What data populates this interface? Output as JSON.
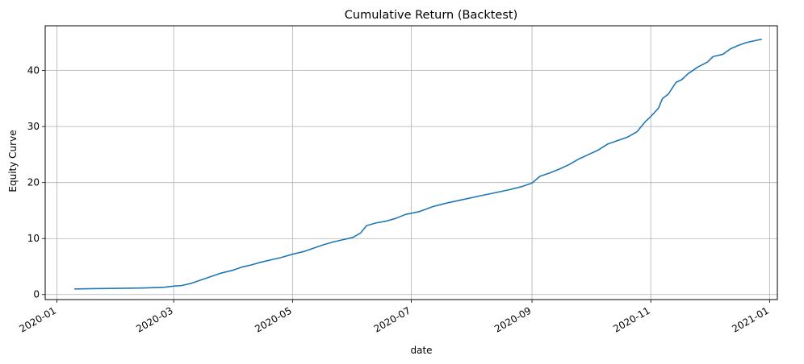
{
  "chart_data": {
    "type": "line",
    "title": "Cumulative Return (Backtest)",
    "xlabel": "date",
    "ylabel": "Equity Curve",
    "x_type": "date",
    "xlim": [
      "2019-12-26",
      "2021-01-05"
    ],
    "ylim": [
      -0.9,
      48
    ],
    "grid": true,
    "x_ticks": [
      "2020-01-01",
      "2020-03-01",
      "2020-05-01",
      "2020-07-01",
      "2020-09-01",
      "2020-11-01",
      "2021-01-01"
    ],
    "x_tick_labels": [
      "2020-01",
      "2020-03",
      "2020-05",
      "2020-07",
      "2020-09",
      "2020-11",
      "2021-01"
    ],
    "y_ticks": [
      0,
      10,
      20,
      30,
      40
    ],
    "series_color": "#1f77b4",
    "series": [
      {
        "points": [
          [
            "2020-01-10",
            1.0
          ],
          [
            "2020-01-20",
            1.05
          ],
          [
            "2020-02-01",
            1.1
          ],
          [
            "2020-02-15",
            1.18
          ],
          [
            "2020-02-25",
            1.3
          ],
          [
            "2020-03-01",
            1.5
          ],
          [
            "2020-03-05",
            1.6
          ],
          [
            "2020-03-10",
            2.0
          ],
          [
            "2020-03-15",
            2.6
          ],
          [
            "2020-03-20",
            3.2
          ],
          [
            "2020-03-25",
            3.8
          ],
          [
            "2020-03-31",
            4.3
          ],
          [
            "2020-04-05",
            4.9
          ],
          [
            "2020-04-10",
            5.3
          ],
          [
            "2020-04-15",
            5.8
          ],
          [
            "2020-04-20",
            6.2
          ],
          [
            "2020-04-25",
            6.6
          ],
          [
            "2020-05-01",
            7.2
          ],
          [
            "2020-05-07",
            7.7
          ],
          [
            "2020-05-12",
            8.3
          ],
          [
            "2020-05-17",
            8.9
          ],
          [
            "2020-05-22",
            9.4
          ],
          [
            "2020-05-27",
            9.8
          ],
          [
            "2020-06-01",
            10.2
          ],
          [
            "2020-06-05",
            11.0
          ],
          [
            "2020-06-08",
            12.3
          ],
          [
            "2020-06-13",
            12.8
          ],
          [
            "2020-06-18",
            13.1
          ],
          [
            "2020-06-23",
            13.6
          ],
          [
            "2020-06-28",
            14.3
          ],
          [
            "2020-07-05",
            14.8
          ],
          [
            "2020-07-12",
            15.7
          ],
          [
            "2020-07-20",
            16.4
          ],
          [
            "2020-07-28",
            17.0
          ],
          [
            "2020-08-05",
            17.6
          ],
          [
            "2020-08-12",
            18.1
          ],
          [
            "2020-08-20",
            18.7
          ],
          [
            "2020-08-27",
            19.3
          ],
          [
            "2020-09-01",
            19.9
          ],
          [
            "2020-09-05",
            21.1
          ],
          [
            "2020-09-10",
            21.7
          ],
          [
            "2020-09-15",
            22.4
          ],
          [
            "2020-09-20",
            23.2
          ],
          [
            "2020-09-25",
            24.2
          ],
          [
            "2020-09-30",
            25.0
          ],
          [
            "2020-10-05",
            25.8
          ],
          [
            "2020-10-10",
            26.9
          ],
          [
            "2020-10-15",
            27.5
          ],
          [
            "2020-10-20",
            28.1
          ],
          [
            "2020-10-25",
            29.1
          ],
          [
            "2020-10-29",
            30.8
          ],
          [
            "2020-11-01",
            31.8
          ],
          [
            "2020-11-05",
            33.3
          ],
          [
            "2020-11-07",
            35.0
          ],
          [
            "2020-11-10",
            35.8
          ],
          [
            "2020-11-14",
            37.9
          ],
          [
            "2020-11-17",
            38.4
          ],
          [
            "2020-11-20",
            39.4
          ],
          [
            "2020-11-25",
            40.6
          ],
          [
            "2020-11-30",
            41.5
          ],
          [
            "2020-12-03",
            42.5
          ],
          [
            "2020-12-08",
            42.9
          ],
          [
            "2020-12-12",
            43.9
          ],
          [
            "2020-12-16",
            44.5
          ],
          [
            "2020-12-20",
            45.0
          ],
          [
            "2020-12-24",
            45.3
          ],
          [
            "2020-12-28",
            45.6
          ]
        ]
      }
    ]
  }
}
